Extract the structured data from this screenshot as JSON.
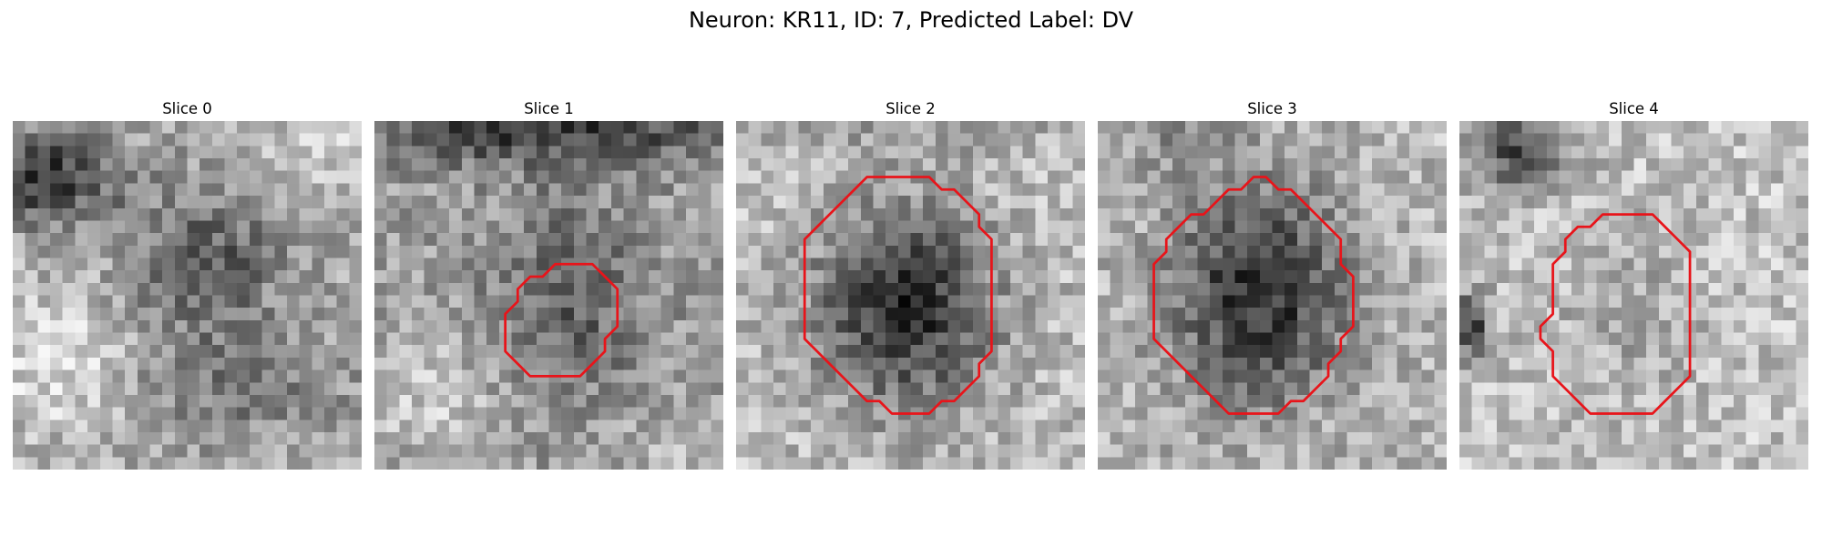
{
  "figure": {
    "title": "Neuron: KR11, ID: 7, Predicted Label: DV",
    "outline_color": "#e8141a"
  },
  "panels": [
    {
      "title": "Slice 0",
      "contour": null
    },
    {
      "title": "Slice 1",
      "contour": [
        [
          14.5,
          11.5
        ],
        [
          13.5,
          12.5
        ],
        [
          12.5,
          12.5
        ],
        [
          11.5,
          13.5
        ],
        [
          11.5,
          14.5
        ],
        [
          10.5,
          15.5
        ],
        [
          10.5,
          18.5
        ],
        [
          11.5,
          19.5
        ],
        [
          12.5,
          20.5
        ],
        [
          16.5,
          20.5
        ],
        [
          17.5,
          19.5
        ],
        [
          18.5,
          18.5
        ],
        [
          18.5,
          17.5
        ],
        [
          19.5,
          16.5
        ],
        [
          19.5,
          13.5
        ],
        [
          18.5,
          12.5
        ],
        [
          17.5,
          11.5
        ],
        [
          15.5,
          11.5
        ]
      ]
    },
    {
      "title": "Slice 2",
      "contour": [
        [
          10.5,
          4.5
        ],
        [
          9.5,
          5.5
        ],
        [
          8.5,
          6.5
        ],
        [
          7.5,
          7.5
        ],
        [
          6.5,
          8.5
        ],
        [
          5.5,
          9.5
        ],
        [
          5.5,
          17.5
        ],
        [
          6.5,
          18.5
        ],
        [
          7.5,
          19.5
        ],
        [
          8.5,
          20.5
        ],
        [
          9.5,
          21.5
        ],
        [
          10.5,
          22.5
        ],
        [
          11.5,
          22.5
        ],
        [
          12.5,
          23.5
        ],
        [
          15.5,
          23.5
        ],
        [
          16.5,
          22.5
        ],
        [
          17.5,
          22.5
        ],
        [
          18.5,
          21.5
        ],
        [
          19.5,
          20.5
        ],
        [
          19.5,
          19.5
        ],
        [
          20.5,
          18.5
        ],
        [
          20.5,
          16.5
        ],
        [
          20.5,
          9.5
        ],
        [
          19.5,
          8.5
        ],
        [
          19.5,
          7.5
        ],
        [
          18.5,
          6.5
        ],
        [
          17.5,
          5.5
        ],
        [
          16.5,
          5.5
        ],
        [
          15.5,
          4.5
        ]
      ]
    },
    {
      "title": "Slice 3",
      "contour": [
        [
          12.5,
          4.5
        ],
        [
          11.5,
          5.5
        ],
        [
          10.5,
          5.5
        ],
        [
          9.5,
          6.5
        ],
        [
          8.5,
          7.5
        ],
        [
          7.5,
          7.5
        ],
        [
          6.5,
          8.5
        ],
        [
          5.5,
          9.5
        ],
        [
          5.5,
          10.5
        ],
        [
          4.5,
          11.5
        ],
        [
          4.5,
          17.5
        ],
        [
          5.5,
          18.5
        ],
        [
          6.5,
          19.5
        ],
        [
          7.5,
          20.5
        ],
        [
          8.5,
          21.5
        ],
        [
          9.5,
          22.5
        ],
        [
          10.5,
          23.5
        ],
        [
          14.5,
          23.5
        ],
        [
          15.5,
          22.5
        ],
        [
          16.5,
          22.5
        ],
        [
          17.5,
          21.5
        ],
        [
          18.5,
          20.5
        ],
        [
          18.5,
          19.5
        ],
        [
          19.5,
          18.5
        ],
        [
          19.5,
          17.5
        ],
        [
          20.5,
          16.5
        ],
        [
          20.5,
          12.5
        ],
        [
          19.5,
          11.5
        ],
        [
          19.5,
          9.5
        ],
        [
          18.5,
          8.5
        ],
        [
          17.5,
          7.5
        ],
        [
          16.5,
          6.5
        ],
        [
          15.5,
          5.5
        ],
        [
          14.5,
          5.5
        ],
        [
          13.5,
          4.5
        ]
      ]
    },
    {
      "title": "Slice 4",
      "contour": [
        [
          11.5,
          7.5
        ],
        [
          10.5,
          8.5
        ],
        [
          9.5,
          8.5
        ],
        [
          8.5,
          9.5
        ],
        [
          8.5,
          10.5
        ],
        [
          7.5,
          11.5
        ],
        [
          7.5,
          15.5
        ],
        [
          6.5,
          16.5
        ],
        [
          6.5,
          17.5
        ],
        [
          7.5,
          18.5
        ],
        [
          7.5,
          20.5
        ],
        [
          8.5,
          21.5
        ],
        [
          9.5,
          22.5
        ],
        [
          10.5,
          23.5
        ],
        [
          15.5,
          23.5
        ],
        [
          16.5,
          22.5
        ],
        [
          17.5,
          21.5
        ],
        [
          18.5,
          20.5
        ],
        [
          18.5,
          10.5
        ],
        [
          17.5,
          9.5
        ],
        [
          16.5,
          8.5
        ],
        [
          15.5,
          7.5
        ]
      ]
    }
  ]
}
